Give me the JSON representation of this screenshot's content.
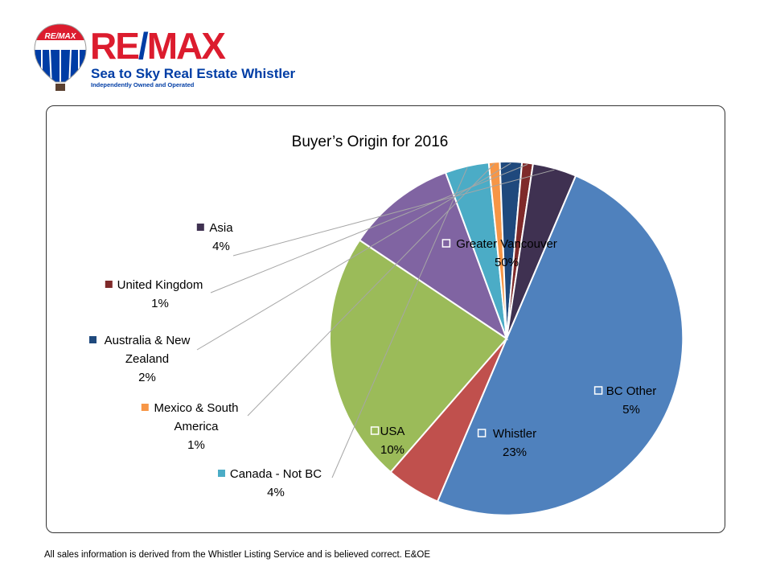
{
  "brand": {
    "wordmark_re": "RE",
    "wordmark_slash": "/",
    "wordmark_max": "MAX",
    "balloon_text": "RE/MAX",
    "tagline": "Sea to Sky Real Estate Whistler",
    "subtagline": "Independently Owned and Operated",
    "colors": {
      "red": "#dc1c2e",
      "blue": "#003da5"
    }
  },
  "footer": {
    "note": "All sales information is derived from the Whistler Listing Service and is believed correct. E&OE"
  },
  "chart_data": {
    "type": "pie",
    "title": "Buyer’s Origin for 2016",
    "slices": [
      {
        "name": "Greater Vancouver",
        "value": 50,
        "label": "50%",
        "color": "#4f81bd"
      },
      {
        "name": "BC Other",
        "value": 5,
        "label": "5%",
        "color": "#c0504d"
      },
      {
        "name": "Whistler",
        "value": 23,
        "label": "23%",
        "color": "#9bbb59"
      },
      {
        "name": "USA",
        "value": 10,
        "label": "10%",
        "color": "#8064a2"
      },
      {
        "name": "Canada - Not BC",
        "value": 4,
        "label": "4%",
        "color": "#4bacc6"
      },
      {
        "name": "Mexico & South America",
        "value": 1,
        "label": "1%",
        "color": "#f79646"
      },
      {
        "name": "Australia & New Zealand",
        "value": 2,
        "label": "2%",
        "color": "#1f497d"
      },
      {
        "name": "United Kingdom",
        "value": 1,
        "label": "1%",
        "color": "#7f2a2a"
      },
      {
        "name": "Asia",
        "value": 4,
        "label": "4%",
        "color": "#3f3151"
      }
    ]
  }
}
